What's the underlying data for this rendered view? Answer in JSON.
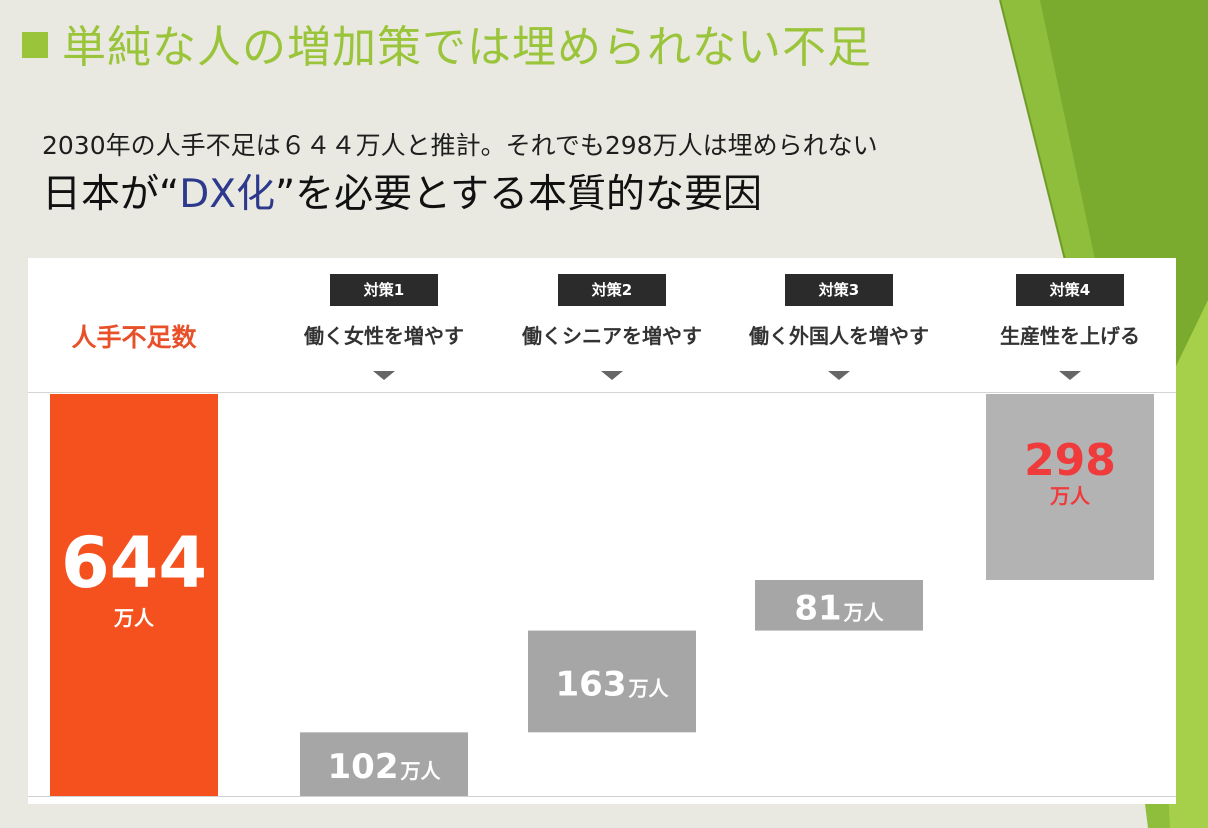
{
  "slide": {
    "title": "単純な人の増加策では埋められない不足",
    "subtitle": "2030年の人手不足は６４４万人と推計。それでも298万人は埋められない",
    "headline_pre": "日本が“",
    "headline_dx": "DX化",
    "headline_post": "”を必要とする本質的な要因"
  },
  "colors": {
    "accent_green": "#9ac43a",
    "total_bar": "#f4511e",
    "step_bar": "#a6a6a6",
    "remaining_bar": "#b3b3b3",
    "highlight_red": "#ef3b3b",
    "dx_blue": "#2d3a8c"
  },
  "chart_data": {
    "type": "bar",
    "subtype": "waterfall",
    "unit": "万人",
    "ylim": [
      0,
      644
    ],
    "categories": [
      "人手不足数",
      "働く女性を増やす",
      "働くシニアを増やす",
      "働く外国人を増やす",
      "生産性を上げる"
    ],
    "badges": [
      "",
      "対策1",
      "対策2",
      "対策3",
      "対策4"
    ],
    "values": [
      644,
      102,
      163,
      81,
      298
    ],
    "kinds": [
      "total",
      "step",
      "step",
      "step",
      "remaining"
    ],
    "labels": [
      "644",
      "102",
      "163",
      "81",
      "298"
    ],
    "grid": false,
    "legend": "none"
  }
}
